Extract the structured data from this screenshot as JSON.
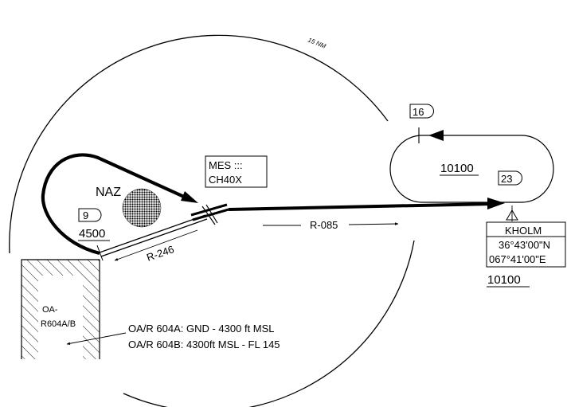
{
  "ring": {
    "label": "15 NM"
  },
  "restricted_area": {
    "name_line1": "OA-",
    "name_line2": "R604A/B"
  },
  "restriction_notes": [
    "OA/R 604A: GND - 4300 ft MSL",
    "OA/R 604B: 4300ft MSL - FL 145"
  ],
  "navaid": {
    "label": "NAZ"
  },
  "left_hold": {
    "time_box": "9",
    "altitude": "4500"
  },
  "right_hold": {
    "time_box": "16",
    "altitude": "10100"
  },
  "fix_23": {
    "box": "23"
  },
  "radials": {
    "outbound": "R-085",
    "inbound": "R-246"
  },
  "station": {
    "line1": "MES :::",
    "line2": "CH40X"
  },
  "waypoint": {
    "name": "KHOLM",
    "lat": "36°43'00\"N",
    "lon": "067°41'00\"E",
    "altitude": "10100"
  }
}
